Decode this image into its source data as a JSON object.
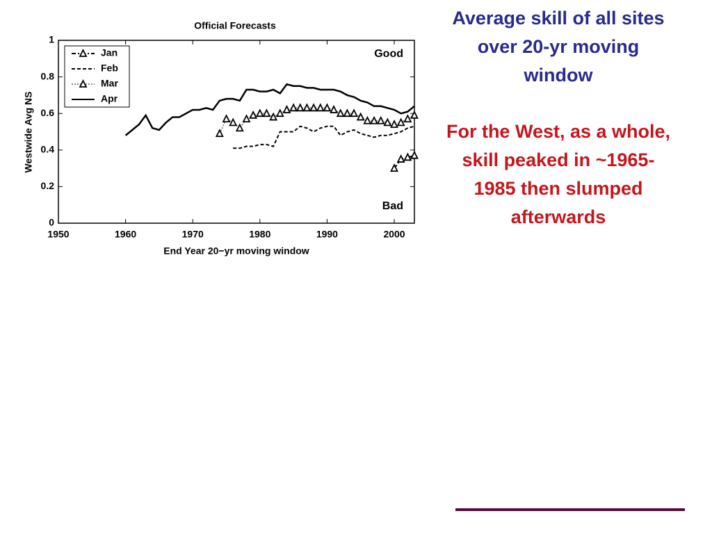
{
  "chart_data": {
    "type": "line",
    "title": "Official Forecasts",
    "xlabel": "End Year 20−yr moving window",
    "ylabel": "Westwide Avg NS",
    "x": [
      1960,
      1961,
      1962,
      1963,
      1964,
      1965,
      1966,
      1967,
      1968,
      1969,
      1970,
      1971,
      1972,
      1973,
      1974,
      1975,
      1976,
      1977,
      1978,
      1979,
      1980,
      1981,
      1982,
      1983,
      1984,
      1985,
      1986,
      1987,
      1988,
      1989,
      1990,
      1991,
      1992,
      1993,
      1994,
      1995,
      1996,
      1997,
      1998,
      1999,
      2000,
      2001,
      2002,
      2003
    ],
    "series": [
      {
        "name": "Jan",
        "color": "#000000",
        "linestyle": "dashdot",
        "marker": "triangle",
        "values": [
          null,
          null,
          null,
          null,
          null,
          null,
          null,
          null,
          null,
          null,
          null,
          null,
          null,
          null,
          null,
          null,
          null,
          null,
          null,
          null,
          null,
          null,
          null,
          null,
          null,
          null,
          null,
          null,
          null,
          null,
          null,
          null,
          null,
          null,
          null,
          null,
          null,
          null,
          null,
          null,
          0.3,
          0.35,
          0.36,
          0.37
        ]
      },
      {
        "name": "Feb",
        "color": "#000000",
        "linestyle": "dashed",
        "marker": "none",
        "values": [
          null,
          null,
          null,
          null,
          null,
          null,
          null,
          null,
          null,
          null,
          null,
          null,
          null,
          null,
          null,
          null,
          0.41,
          0.41,
          0.42,
          0.42,
          0.43,
          0.43,
          0.42,
          0.5,
          0.5,
          0.5,
          0.53,
          0.52,
          0.5,
          0.52,
          0.53,
          0.53,
          0.48,
          0.5,
          0.51,
          0.49,
          0.48,
          0.47,
          0.48,
          0.48,
          0.49,
          0.5,
          0.52,
          0.53
        ]
      },
      {
        "name": "Mar",
        "color": "#888888",
        "linestyle": "dotted",
        "marker": "triangle",
        "values": [
          null,
          null,
          null,
          null,
          null,
          null,
          null,
          null,
          null,
          null,
          null,
          null,
          null,
          null,
          0.49,
          0.57,
          0.55,
          0.52,
          0.57,
          0.59,
          0.6,
          0.6,
          0.58,
          0.6,
          0.62,
          0.63,
          0.63,
          0.63,
          0.63,
          0.63,
          0.63,
          0.62,
          0.6,
          0.6,
          0.6,
          0.58,
          0.56,
          0.56,
          0.56,
          0.55,
          0.54,
          0.55,
          0.57,
          0.59
        ]
      },
      {
        "name": "Apr",
        "color": "#000000",
        "linestyle": "solid",
        "marker": "none",
        "values": [
          0.48,
          0.51,
          0.54,
          0.59,
          0.52,
          0.51,
          0.55,
          0.58,
          0.58,
          0.6,
          0.62,
          0.62,
          0.63,
          0.62,
          0.67,
          0.68,
          0.68,
          0.67,
          0.73,
          0.73,
          0.72,
          0.72,
          0.73,
          0.71,
          0.76,
          0.75,
          0.75,
          0.74,
          0.74,
          0.73,
          0.73,
          0.73,
          0.72,
          0.7,
          0.69,
          0.67,
          0.66,
          0.64,
          0.64,
          0.63,
          0.62,
          0.6,
          0.61,
          0.64
        ]
      }
    ],
    "xlim": [
      1950,
      2003
    ],
    "xticks": [
      1950,
      1960,
      1970,
      1980,
      1990,
      2000
    ],
    "ylim": [
      0,
      1
    ],
    "yticks": [
      0,
      0.2,
      0.4,
      0.6,
      0.8,
      1
    ],
    "legend": "upper left",
    "grid": false,
    "annotations": [
      "Good",
      "Bad"
    ]
  },
  "slide": {
    "heading": [
      "Average skill of all sites",
      "over 20-yr moving",
      "window"
    ],
    "body": [
      "For the West, as a whole,",
      "skill peaked in ~1965-",
      "1985 then slumped",
      "afterwards"
    ]
  }
}
